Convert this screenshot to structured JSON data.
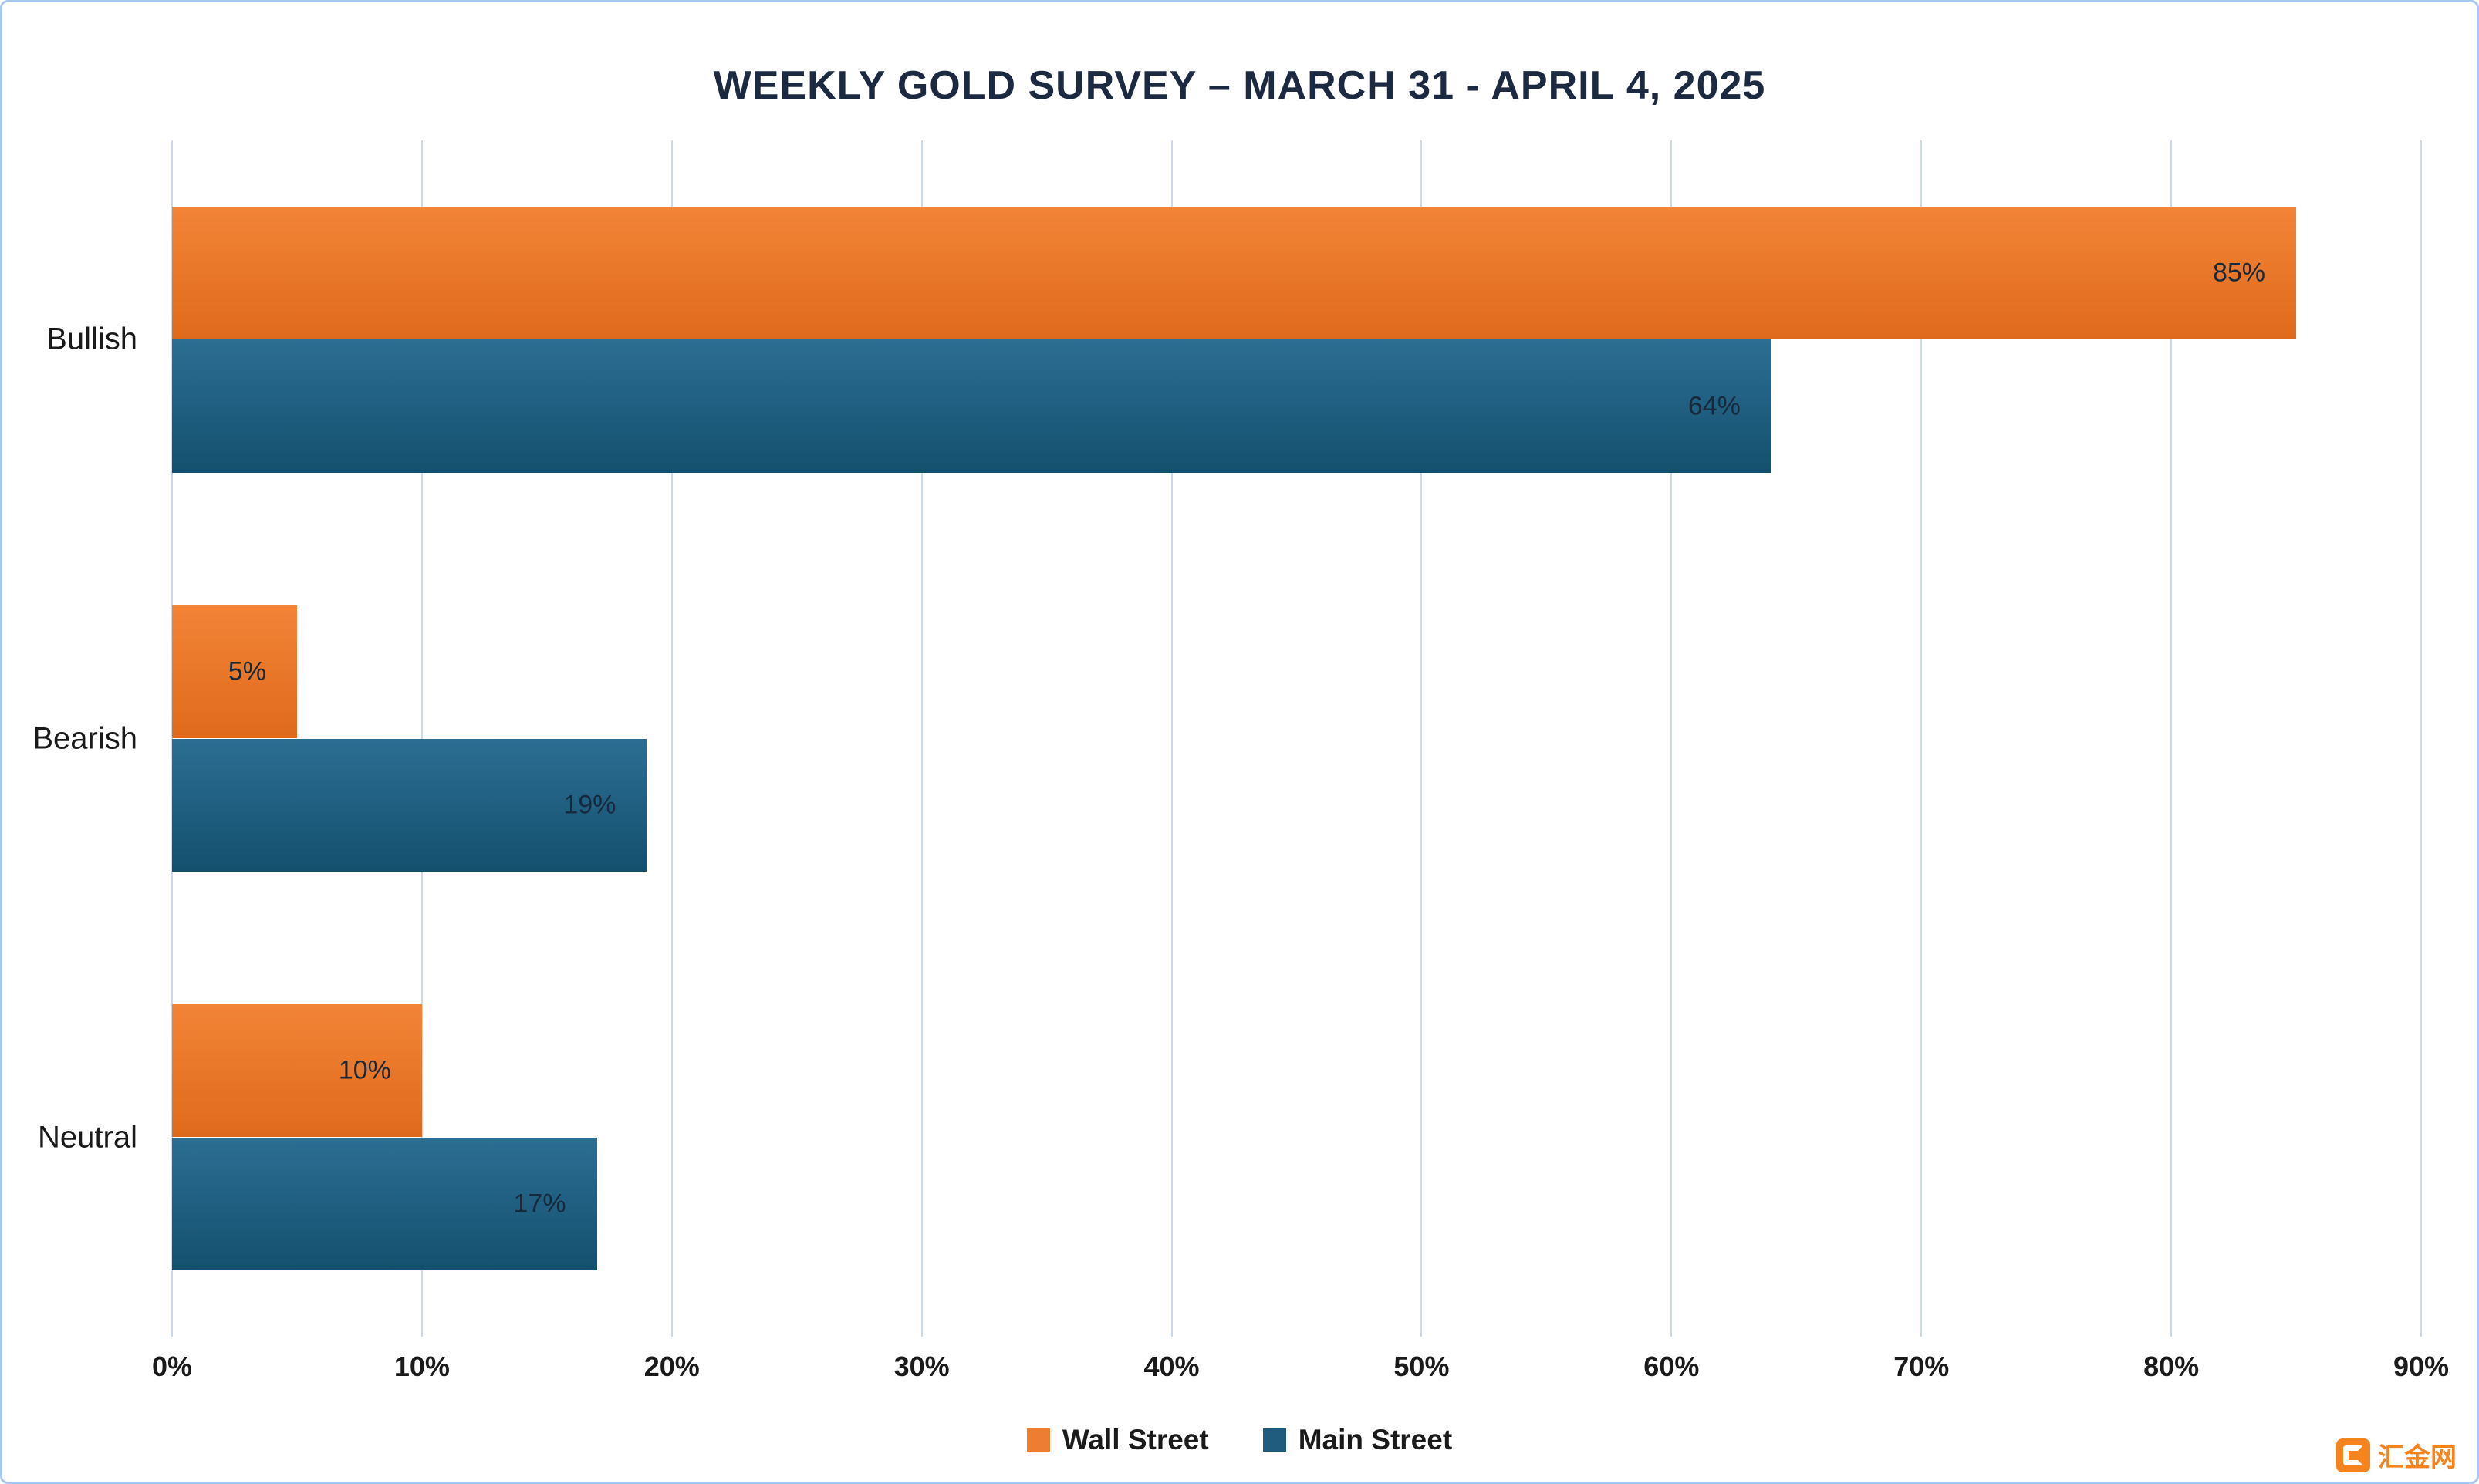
{
  "chart_data": {
    "type": "bar",
    "orientation": "horizontal",
    "title": "WEEKLY GOLD SURVEY – MARCH 31 - APRIL 4, 2025",
    "categories": [
      "Bullish",
      "Bearish",
      "Neutral"
    ],
    "series": [
      {
        "name": "Wall Street",
        "values": [
          85,
          5,
          10
        ],
        "color": "#ED7D31",
        "color_top": "#F28437",
        "color_bottom": "#E06A1B"
      },
      {
        "name": "Main Street",
        "values": [
          64,
          19,
          17
        ],
        "color": "#1F5C7E",
        "color_top": "#2C6E93",
        "color_bottom": "#14506E"
      }
    ],
    "value_suffix": "%",
    "xlim": [
      0,
      90
    ],
    "xtick_step": 10,
    "xtick_labels": [
      "0%",
      "10%",
      "20%",
      "30%",
      "40%",
      "50%",
      "60%",
      "70%",
      "80%",
      "90%"
    ],
    "grid": "vertical",
    "legend_position": "bottom"
  },
  "colors": {
    "title": "#1B2A41",
    "text": "#1A1A1A",
    "grid": "#CBD9EC",
    "border": "#A9C7EC",
    "background": "#FFFFFF",
    "bar_label": "#17293C",
    "watermark": "#F5841F"
  },
  "watermark": {
    "text": "汇金网",
    "icon": "huijin-logo"
  }
}
